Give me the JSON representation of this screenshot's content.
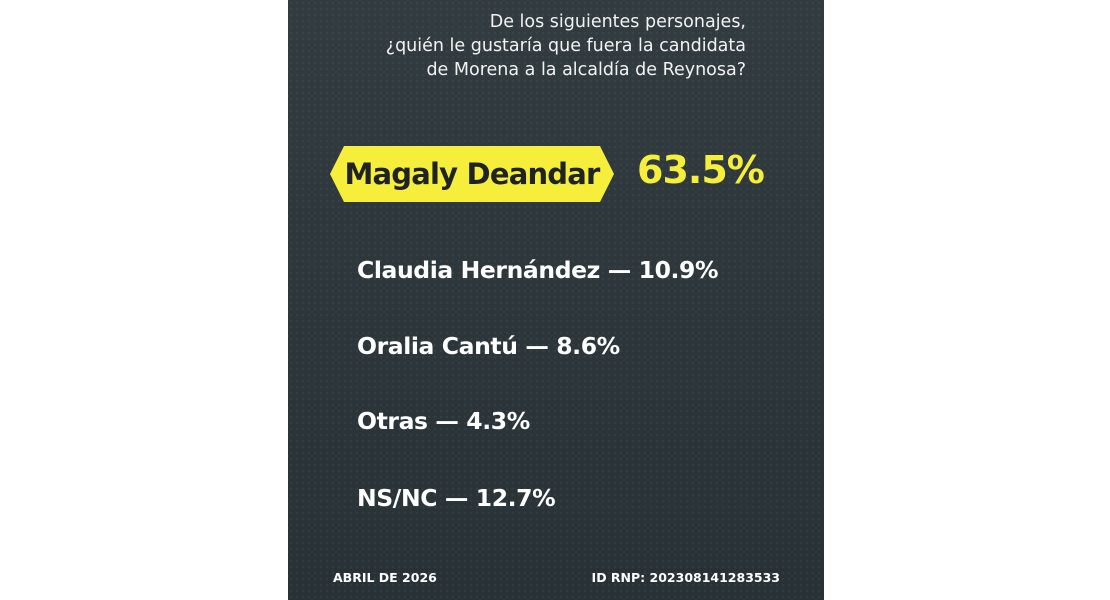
{
  "question": {
    "line1": "De los siguientes personajes,",
    "line2": "¿quién le gustaría que fuera la candidata",
    "line3": "de Morena a la alcaldía de Reynosa?"
  },
  "winner": {
    "name": "Magaly Deandar",
    "percent": "63.5%"
  },
  "results": [
    {
      "text": "Claudia Hernández — 10.9%",
      "name": "Claudia Hernández",
      "percent": 10.9
    },
    {
      "text": "Oralia Cantú — 8.6%",
      "name": "Oralia Cantú",
      "percent": 8.6
    },
    {
      "text": "Otras — 4.3%",
      "name": "Otras",
      "percent": 4.3
    },
    {
      "text": "NS/NC — 12.7%",
      "name": "NS/NC",
      "percent": 12.7
    }
  ],
  "footer": {
    "date": "ABRIL DE 2026",
    "id": "ID RNP: 202308141283533"
  },
  "colors": {
    "background": "#2c363a",
    "accent": "#f5ee3a",
    "text": "#ffffff"
  }
}
